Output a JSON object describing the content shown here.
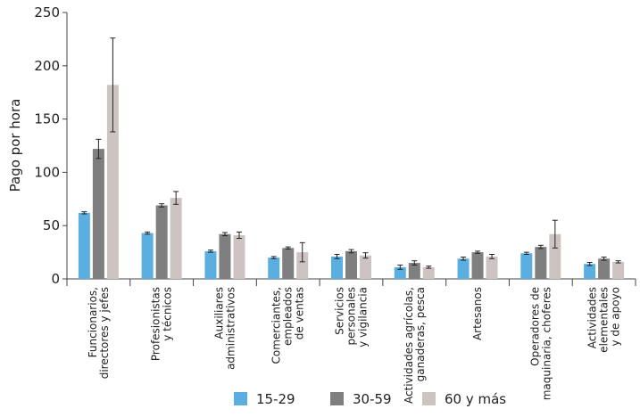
{
  "chart_data": {
    "type": "bar",
    "y_label": "Pago por hora",
    "categories": [
      [
        "Funcionarios,",
        "directores y jefes"
      ],
      [
        "Profesionistas",
        "y técnicos"
      ],
      [
        "Auxiliares",
        "administrativos"
      ],
      [
        "Comerciantes,",
        "empleados",
        "de ventas"
      ],
      [
        "Servicios",
        "personales",
        "y vigilancia"
      ],
      [
        "Actividades agrícolas,",
        "ganaderas,  pesca"
      ],
      [
        "Artesanos"
      ],
      [
        "Operadores de",
        "maquinaria, choferes"
      ],
      [
        "Actividades",
        "elementales",
        "y de apoyo"
      ]
    ],
    "series": [
      {
        "name": "15-29",
        "color": "#5aaee0",
        "values": [
          62,
          43,
          26,
          20,
          21,
          11,
          19,
          24,
          14
        ],
        "errors": [
          1,
          1,
          1,
          1,
          2,
          2,
          1.5,
          1,
          1.5
        ]
      },
      {
        "name": "30-59",
        "color": "#7f7f7f",
        "values": [
          122,
          69,
          42,
          29,
          26,
          15,
          25,
          30,
          19
        ],
        "errors": [
          9,
          1.5,
          1.5,
          1,
          1.5,
          2,
          1,
          1.5,
          1.5
        ]
      },
      {
        "name": "60 y más",
        "color": "#cdc3c3",
        "values": [
          182,
          76,
          41,
          25,
          22,
          11,
          21,
          42,
          16
        ],
        "errors": [
          44,
          6,
          3,
          9,
          2.5,
          1,
          2,
          13,
          1
        ]
      }
    ],
    "ylim": [
      0,
      250
    ],
    "yticks": [
      0,
      50,
      100,
      150,
      200,
      250
    ]
  }
}
